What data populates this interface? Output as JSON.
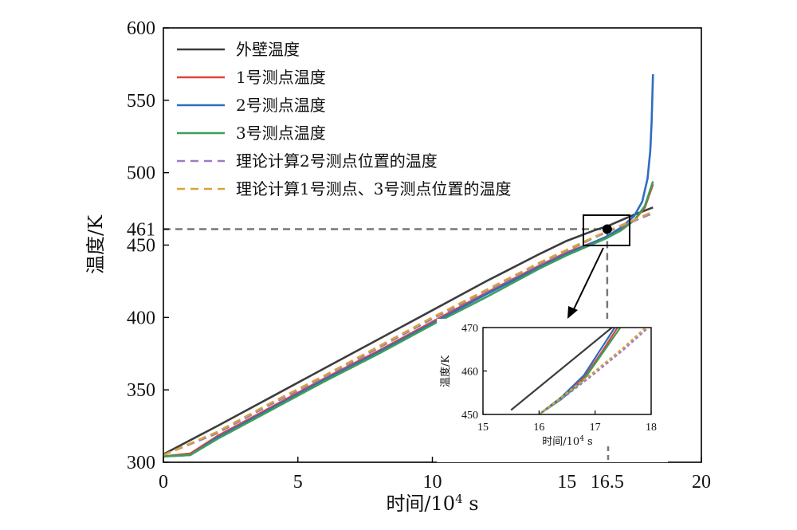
{
  "chart_data": {
    "type": "line",
    "xlabel": "时间/10",
    "xlabel_sup": "4",
    "xlabel_unit": " s",
    "ylabel": "温度/K",
    "xlim": [
      0,
      20
    ],
    "ylim": [
      300,
      600
    ],
    "xticks": [
      "0",
      "5",
      "10",
      "15",
      "16.5",
      "20"
    ],
    "xtick_values": [
      0,
      5,
      10,
      15,
      16.5,
      20
    ],
    "yticks": [
      "300",
      "350",
      "400",
      "450",
      "461",
      "500",
      "550",
      "600"
    ],
    "ytick_values": [
      300,
      350,
      400,
      450,
      461,
      500,
      550,
      600
    ],
    "reference": {
      "x": 16.5,
      "y": 461
    },
    "legend_position": "top-left",
    "grid": false,
    "series": [
      {
        "name": "外壁温度",
        "color": "#3d3d3d",
        "dash": "solid",
        "x": [
          0,
          2,
          4,
          6,
          8,
          10,
          12,
          14,
          15,
          16,
          16.5,
          17,
          17.5,
          18.2
        ],
        "y": [
          305.5,
          325,
          345,
          365,
          385,
          405,
          425,
          444,
          453,
          460,
          463,
          467,
          471,
          476
        ]
      },
      {
        "name": "1号测点温度",
        "color": "#d9473e",
        "dash": "solid",
        "x": [
          0,
          1,
          2,
          4,
          6,
          8,
          10,
          12,
          14,
          15,
          16,
          16.5,
          17,
          17.5,
          17.9,
          18.2
        ],
        "y": [
          304,
          306,
          318,
          338,
          358,
          377,
          397,
          417,
          436,
          445,
          452,
          456,
          461,
          467,
          476,
          492
        ]
      },
      {
        "name": "2号测点温度",
        "color": "#2f6cbf",
        "dash": "solid",
        "x": [
          0,
          1,
          2,
          4,
          6,
          8,
          10,
          12,
          14,
          15,
          16,
          16.5,
          17,
          17.5,
          17.8,
          18.0,
          18.1,
          18.15,
          18.2
        ],
        "y": [
          304,
          305,
          317,
          337,
          357,
          376,
          396,
          416,
          435,
          444,
          452,
          456,
          462,
          470,
          480,
          496,
          515,
          535,
          568
        ]
      },
      {
        "name": "3号测点温度",
        "color": "#3d9e5a",
        "dash": "solid",
        "x": [
          0,
          1,
          2,
          4,
          6,
          8,
          10,
          12,
          14,
          15,
          16,
          16.5,
          17,
          17.5,
          17.9,
          18.2
        ],
        "y": [
          304,
          305,
          316,
          336,
          356,
          375,
          395,
          414,
          434,
          443,
          451,
          455,
          460,
          467,
          477,
          494
        ]
      },
      {
        "name": "理论计算2号测点位置的温度",
        "color": "#9b7cc4",
        "dash": "dashed",
        "x": [
          0,
          2,
          4,
          6,
          8,
          10,
          12,
          14,
          16,
          17,
          18.2
        ],
        "y": [
          305,
          320,
          340,
          359,
          379,
          399,
          418,
          437,
          455,
          463,
          472
        ]
      },
      {
        "name": "理论计算1号测点、3号测点位置的温度",
        "color": "#d9a23a",
        "dash": "dashed",
        "x": [
          0,
          2,
          4,
          6,
          8,
          10,
          12,
          14,
          16,
          17,
          18.2
        ],
        "y": [
          305,
          321,
          341,
          360,
          380,
          400,
          419,
          438,
          455.5,
          463.5,
          473
        ]
      }
    ],
    "inset": {
      "ylabel": "温度/K",
      "xlabel": "时间/10",
      "xlabel_sup": "4",
      "xlabel_unit": " s",
      "xlim": [
        15,
        18
      ],
      "ylim": [
        450,
        470
      ],
      "xticks": [
        "15",
        "16",
        "17",
        "18"
      ],
      "xtick_values": [
        15,
        16,
        17,
        18
      ],
      "yticks": [
        "450",
        "460",
        "470"
      ],
      "ytick_values": [
        450,
        460,
        470
      ],
      "series": [
        {
          "color": "#3d3d3d",
          "dash": "solid",
          "x": [
            15.5,
            17.3
          ],
          "y": [
            451,
            470
          ]
        },
        {
          "color": "#d9473e",
          "dash": "solid",
          "x": [
            16.0,
            16.4,
            16.8,
            17.1,
            17.4
          ],
          "y": [
            450,
            454,
            458.5,
            464,
            470
          ]
        },
        {
          "color": "#2f6cbf",
          "dash": "solid",
          "x": [
            16.0,
            16.4,
            16.8,
            17.1,
            17.35
          ],
          "y": [
            450,
            454,
            459,
            465,
            470
          ]
        },
        {
          "color": "#3d9e5a",
          "dash": "solid",
          "x": [
            16.0,
            16.4,
            16.8,
            17.1,
            17.45
          ],
          "y": [
            450,
            453.5,
            458,
            463.5,
            470
          ]
        },
        {
          "color": "#9b7cc4",
          "dash": "dashed",
          "x": [
            16.0,
            16.5,
            17.0,
            17.5,
            17.95
          ],
          "y": [
            450,
            454.5,
            459.5,
            464.8,
            470
          ]
        },
        {
          "color": "#d9a23a",
          "dash": "dashed",
          "x": [
            16.0,
            16.5,
            17.0,
            17.5,
            17.9
          ],
          "y": [
            450,
            455,
            460,
            465.3,
            470
          ]
        }
      ]
    }
  }
}
